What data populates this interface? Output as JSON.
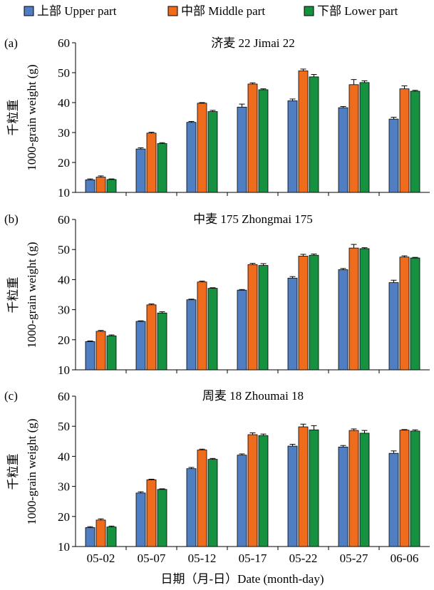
{
  "legend": [
    {
      "name": "上部 Upper part",
      "color": "#4f7fc2"
    },
    {
      "name": "中部 Middle part",
      "color": "#ee6c1b"
    },
    {
      "name": "下部 Lower part",
      "color": "#16913f"
    }
  ],
  "xlabel": "日期（月-日）Date (month-day)",
  "ylabel_cn": "千粒重",
  "ylabel_en": "1000-grain weight (g)",
  "chart_data": [
    {
      "type": "bar",
      "panel": "(a)",
      "title": "济麦 22 Jimai 22",
      "categories": [
        "05-02",
        "05-07",
        "05-12",
        "05-17",
        "05-22",
        "05-27",
        "06-06"
      ],
      "ylim": [
        10,
        60
      ],
      "yticks": [
        10,
        20,
        30,
        40,
        50,
        60
      ],
      "series": [
        {
          "name": "上部 Upper part",
          "values": [
            14.2,
            24.5,
            33.4,
            38.5,
            40.6,
            38.3,
            34.5
          ],
          "errors": [
            0.3,
            0.4,
            0.3,
            1.0,
            0.6,
            0.4,
            0.6
          ]
        },
        {
          "name": "中部 Middle part",
          "values": [
            15.1,
            29.8,
            39.8,
            46.2,
            50.6,
            46.0,
            44.6
          ],
          "errors": [
            0.4,
            0.3,
            0.2,
            0.4,
            0.6,
            1.7,
            1.0
          ]
        },
        {
          "name": "下部 Lower part",
          "values": [
            14.3,
            26.3,
            37.0,
            44.3,
            48.6,
            46.7,
            43.8
          ],
          "errors": [
            0.2,
            0.3,
            0.4,
            0.3,
            0.8,
            0.6,
            0.3
          ]
        }
      ]
    },
    {
      "type": "bar",
      "panel": "(b)",
      "title": "中麦 175 Zhongmai 175",
      "categories": [
        "05-02",
        "05-07",
        "05-12",
        "05-17",
        "05-22",
        "05-27",
        "06-06"
      ],
      "ylim": [
        10,
        60
      ],
      "yticks": [
        10,
        20,
        30,
        40,
        50,
        60
      ],
      "series": [
        {
          "name": "上部 Upper part",
          "values": [
            19.4,
            26.1,
            33.3,
            36.5,
            40.5,
            43.3,
            39.0
          ],
          "errors": [
            0.2,
            0.2,
            0.2,
            0.2,
            0.5,
            0.4,
            0.8
          ]
        },
        {
          "name": "中部 Middle part",
          "values": [
            22.8,
            31.6,
            39.2,
            45.0,
            47.8,
            50.5,
            47.5
          ],
          "errors": [
            0.3,
            0.3,
            0.3,
            0.4,
            0.6,
            1.2,
            0.4
          ]
        },
        {
          "name": "下部 Lower part",
          "values": [
            21.3,
            28.9,
            37.1,
            44.7,
            48.1,
            50.3,
            47.2
          ],
          "errors": [
            0.3,
            0.4,
            0.2,
            0.6,
            0.4,
            0.3,
            0.2
          ]
        }
      ]
    },
    {
      "type": "bar",
      "panel": "(c)",
      "title": "周麦 18 Zhoumai 18",
      "categories": [
        "05-02",
        "05-07",
        "05-12",
        "05-17",
        "05-22",
        "05-27",
        "06-06"
      ],
      "ylim": [
        10,
        60
      ],
      "yticks": [
        10,
        20,
        30,
        40,
        50,
        60
      ],
      "series": [
        {
          "name": "上部 Upper part",
          "values": [
            16.3,
            27.8,
            35.9,
            40.4,
            43.4,
            43.1,
            41.0
          ],
          "errors": [
            0.3,
            0.4,
            0.4,
            0.4,
            0.6,
            0.5,
            0.8
          ]
        },
        {
          "name": "中部 Middle part",
          "values": [
            18.8,
            32.2,
            42.1,
            47.2,
            49.8,
            48.6,
            48.7
          ],
          "errors": [
            0.4,
            0.2,
            0.3,
            0.6,
            0.9,
            0.5,
            0.2
          ]
        },
        {
          "name": "下部 Lower part",
          "values": [
            16.5,
            29.0,
            39.0,
            46.9,
            48.8,
            47.7,
            48.4
          ],
          "errors": [
            0.3,
            0.2,
            0.3,
            0.5,
            1.4,
            0.9,
            0.4
          ]
        }
      ]
    }
  ]
}
